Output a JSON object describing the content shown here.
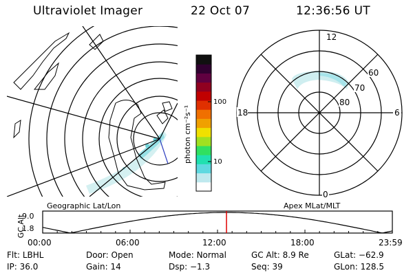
{
  "header": {
    "instrument": "Ultraviolet Imager",
    "date": "22 Oct 07",
    "time": "12:36:56 UT"
  },
  "left_panel": {
    "label": "Geographic Lat/Lon"
  },
  "right_panel": {
    "label": "Apex MLat/MLT",
    "mlt_labels": {
      "top": "12",
      "left": "18",
      "right": "6",
      "bottom": "0"
    },
    "mlat_labels": [
      "60",
      "70",
      "80"
    ]
  },
  "colorbar": {
    "unit_label": "photon cm⁻²s⁻¹",
    "ticks": [
      "100",
      "10"
    ],
    "colors": [
      "#ffffff",
      "#bfe9ee",
      "#5fd9e0",
      "#20e0b0",
      "#30e060",
      "#a0e020",
      "#f0e000",
      "#f0a000",
      "#f07000",
      "#e03000",
      "#c00000",
      "#900020",
      "#600040",
      "#300030",
      "#101010"
    ]
  },
  "altitude_plot": {
    "ylabel": "GC Alt",
    "yticks": [
      "9.0",
      "1.8"
    ],
    "xticks": [
      "00:00",
      "06:00",
      "12:00",
      "18:00",
      "23:59"
    ],
    "marker_time_hours": 12.616,
    "marker_color": "#e00000"
  },
  "info": {
    "filter_label": "Flt:",
    "filter": "LBHL",
    "door_label": "Door:",
    "door": "Open",
    "mode_label": "Mode:",
    "mode": "Normal",
    "gc_alt_label": "GC Alt:",
    "gc_alt": "8.9 Re",
    "glat_label": "GLat:",
    "glat": "−62.9",
    "ip_label": "IP:",
    "ip": "36.0",
    "gain_label": "Gain:",
    "gain": "14",
    "dsp_label": "Dsp:",
    "dsp": "−1.3",
    "seq_label": "Seq:",
    "seq": "39",
    "glon_label": "GLon:",
    "glon": "128.5"
  }
}
